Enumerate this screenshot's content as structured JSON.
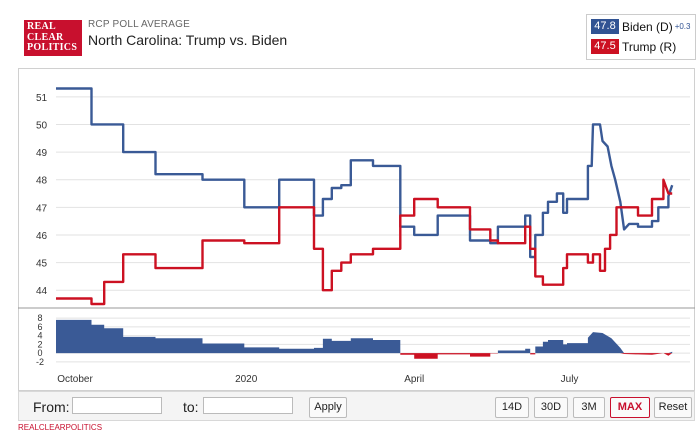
{
  "header": {
    "logo_lines": [
      "REAL",
      "CLEAR",
      "POLITICS"
    ],
    "kicker": "RCP POLL AVERAGE",
    "title": "North Carolina: Trump vs. Biden"
  },
  "legend": {
    "biden": {
      "value": "47.8",
      "name": "Biden (D)",
      "spread": "+0.3",
      "color": "#315393"
    },
    "trump": {
      "value": "47.5",
      "name": "Trump (R)",
      "color": "#cc1122"
    }
  },
  "colors": {
    "biden": "#3a5a96",
    "trump": "#cc1122",
    "grid": "#e2e2e2",
    "axis_text": "#333333"
  },
  "chart_data": {
    "type": "line",
    "title": "North Carolina: Trump vs. Biden",
    "x_ticks": [
      {
        "label": "October",
        "t": 0.03
      },
      {
        "label": "2020",
        "t": 0.3
      },
      {
        "label": "April",
        "t": 0.565
      },
      {
        "label": "July",
        "t": 0.81
      }
    ],
    "ylim": [
      43.5,
      51.5
    ],
    "y_ticks": [
      44,
      45,
      46,
      47,
      48,
      49,
      50,
      51
    ],
    "series": [
      {
        "name": "Biden (D)",
        "color": "#3a5a96",
        "points": [
          [
            0.0,
            51.3
          ],
          [
            0.056,
            51.3
          ],
          [
            0.056,
            50.0
          ],
          [
            0.106,
            50.0
          ],
          [
            0.106,
            49.0
          ],
          [
            0.157,
            49.0
          ],
          [
            0.157,
            48.2
          ],
          [
            0.231,
            48.2
          ],
          [
            0.231,
            48.0
          ],
          [
            0.297,
            48.0
          ],
          [
            0.297,
            47.0
          ],
          [
            0.352,
            47.0
          ],
          [
            0.352,
            48.0
          ],
          [
            0.407,
            48.0
          ],
          [
            0.407,
            46.7
          ],
          [
            0.421,
            46.7
          ],
          [
            0.421,
            47.3
          ],
          [
            0.435,
            47.3
          ],
          [
            0.435,
            47.7
          ],
          [
            0.45,
            47.7
          ],
          [
            0.45,
            47.8
          ],
          [
            0.465,
            47.8
          ],
          [
            0.465,
            48.7
          ],
          [
            0.5,
            48.7
          ],
          [
            0.5,
            48.5
          ],
          [
            0.543,
            48.5
          ],
          [
            0.543,
            46.3
          ],
          [
            0.565,
            46.3
          ],
          [
            0.565,
            46.0
          ],
          [
            0.602,
            46.0
          ],
          [
            0.602,
            46.7
          ],
          [
            0.653,
            46.7
          ],
          [
            0.653,
            45.8
          ],
          [
            0.685,
            45.8
          ],
          [
            0.685,
            45.7
          ],
          [
            0.697,
            45.7
          ],
          [
            0.697,
            46.3
          ],
          [
            0.74,
            46.3
          ],
          [
            0.74,
            46.7
          ],
          [
            0.748,
            46.7
          ],
          [
            0.748,
            45.2
          ],
          [
            0.756,
            45.2
          ],
          [
            0.756,
            46.0
          ],
          [
            0.768,
            46.0
          ],
          [
            0.768,
            46.8
          ],
          [
            0.776,
            46.8
          ],
          [
            0.776,
            47.2
          ],
          [
            0.79,
            47.2
          ],
          [
            0.79,
            47.5
          ],
          [
            0.8,
            47.5
          ],
          [
            0.8,
            46.8
          ],
          [
            0.806,
            46.8
          ],
          [
            0.806,
            47.3
          ],
          [
            0.839,
            47.3
          ],
          [
            0.839,
            48.5
          ],
          [
            0.845,
            48.5
          ],
          [
            0.847,
            50.0
          ],
          [
            0.858,
            50.0
          ],
          [
            0.862,
            49.4
          ],
          [
            0.87,
            49.2
          ],
          [
            0.876,
            48.5
          ],
          [
            0.882,
            48.0
          ],
          [
            0.89,
            47.2
          ],
          [
            0.896,
            46.2
          ],
          [
            0.904,
            46.4
          ],
          [
            0.918,
            46.4
          ],
          [
            0.918,
            46.3
          ],
          [
            0.94,
            46.3
          ],
          [
            0.94,
            46.5
          ],
          [
            0.95,
            46.5
          ],
          [
            0.95,
            47.0
          ],
          [
            0.966,
            47.0
          ],
          [
            0.966,
            47.4
          ],
          [
            0.972,
            47.8
          ]
        ]
      },
      {
        "name": "Trump (R)",
        "color": "#cc1122",
        "points": [
          [
            0.0,
            43.7
          ],
          [
            0.056,
            43.7
          ],
          [
            0.056,
            43.5
          ],
          [
            0.076,
            43.5
          ],
          [
            0.076,
            44.3
          ],
          [
            0.106,
            44.3
          ],
          [
            0.106,
            45.3
          ],
          [
            0.157,
            45.3
          ],
          [
            0.157,
            44.8
          ],
          [
            0.231,
            44.8
          ],
          [
            0.231,
            45.8
          ],
          [
            0.297,
            45.8
          ],
          [
            0.297,
            45.7
          ],
          [
            0.352,
            45.7
          ],
          [
            0.352,
            47.0
          ],
          [
            0.407,
            47.0
          ],
          [
            0.407,
            45.5
          ],
          [
            0.421,
            45.5
          ],
          [
            0.421,
            44.0
          ],
          [
            0.435,
            44.0
          ],
          [
            0.435,
            44.7
          ],
          [
            0.45,
            44.7
          ],
          [
            0.45,
            45.0
          ],
          [
            0.465,
            45.0
          ],
          [
            0.465,
            45.3
          ],
          [
            0.5,
            45.3
          ],
          [
            0.5,
            45.5
          ],
          [
            0.543,
            45.5
          ],
          [
            0.543,
            46.7
          ],
          [
            0.565,
            46.7
          ],
          [
            0.565,
            47.3
          ],
          [
            0.602,
            47.3
          ],
          [
            0.602,
            47.0
          ],
          [
            0.653,
            47.0
          ],
          [
            0.653,
            46.2
          ],
          [
            0.685,
            46.2
          ],
          [
            0.685,
            45.8
          ],
          [
            0.697,
            45.8
          ],
          [
            0.697,
            45.7
          ],
          [
            0.74,
            45.7
          ],
          [
            0.74,
            46.3
          ],
          [
            0.748,
            46.3
          ],
          [
            0.748,
            45.5
          ],
          [
            0.756,
            45.5
          ],
          [
            0.756,
            44.5
          ],
          [
            0.768,
            44.5
          ],
          [
            0.768,
            44.2
          ],
          [
            0.8,
            44.2
          ],
          [
            0.8,
            44.8
          ],
          [
            0.806,
            44.8
          ],
          [
            0.806,
            45.3
          ],
          [
            0.839,
            45.3
          ],
          [
            0.839,
            45.0
          ],
          [
            0.847,
            45.0
          ],
          [
            0.847,
            45.3
          ],
          [
            0.858,
            45.3
          ],
          [
            0.858,
            44.7
          ],
          [
            0.866,
            44.7
          ],
          [
            0.866,
            45.5
          ],
          [
            0.874,
            45.5
          ],
          [
            0.874,
            46.0
          ],
          [
            0.884,
            46.0
          ],
          [
            0.884,
            47.0
          ],
          [
            0.918,
            47.0
          ],
          [
            0.918,
            46.7
          ],
          [
            0.94,
            46.7
          ],
          [
            0.94,
            47.3
          ],
          [
            0.958,
            47.3
          ],
          [
            0.958,
            48.0
          ],
          [
            0.966,
            47.5
          ],
          [
            0.972,
            47.5
          ]
        ]
      }
    ],
    "spread_panel": {
      "ylim": [
        -2.5,
        8.5
      ],
      "y_ticks": [
        8,
        6,
        4,
        2,
        0,
        -2
      ],
      "points": [
        [
          0.0,
          7.6
        ],
        [
          0.056,
          7.6
        ],
        [
          0.056,
          6.5
        ],
        [
          0.076,
          6.5
        ],
        [
          0.076,
          5.7
        ],
        [
          0.106,
          5.7
        ],
        [
          0.106,
          3.7
        ],
        [
          0.157,
          3.7
        ],
        [
          0.157,
          3.4
        ],
        [
          0.231,
          3.4
        ],
        [
          0.231,
          2.2
        ],
        [
          0.297,
          2.2
        ],
        [
          0.297,
          1.3
        ],
        [
          0.352,
          1.3
        ],
        [
          0.352,
          1.0
        ],
        [
          0.407,
          1.0
        ],
        [
          0.407,
          1.2
        ],
        [
          0.421,
          1.2
        ],
        [
          0.421,
          3.3
        ],
        [
          0.435,
          3.3
        ],
        [
          0.435,
          2.8
        ],
        [
          0.465,
          2.8
        ],
        [
          0.465,
          3.4
        ],
        [
          0.5,
          3.4
        ],
        [
          0.5,
          3.0
        ],
        [
          0.543,
          3.0
        ],
        [
          0.543,
          -0.4
        ],
        [
          0.565,
          -0.4
        ],
        [
          0.565,
          -1.3
        ],
        [
          0.602,
          -1.3
        ],
        [
          0.602,
          -0.3
        ],
        [
          0.653,
          -0.3
        ],
        [
          0.653,
          -0.8
        ],
        [
          0.685,
          -0.8
        ],
        [
          0.685,
          -0.1
        ],
        [
          0.697,
          -0.1
        ],
        [
          0.697,
          0.6
        ],
        [
          0.74,
          0.6
        ],
        [
          0.74,
          1.0
        ],
        [
          0.748,
          1.0
        ],
        [
          0.748,
          -0.3
        ],
        [
          0.756,
          -0.3
        ],
        [
          0.756,
          1.5
        ],
        [
          0.768,
          1.5
        ],
        [
          0.768,
          2.6
        ],
        [
          0.776,
          2.6
        ],
        [
          0.776,
          3.0
        ],
        [
          0.8,
          3.0
        ],
        [
          0.8,
          2.0
        ],
        [
          0.806,
          2.0
        ],
        [
          0.806,
          2.3
        ],
        [
          0.839,
          2.3
        ],
        [
          0.839,
          3.5
        ],
        [
          0.847,
          4.8
        ],
        [
          0.862,
          4.6
        ],
        [
          0.876,
          3.4
        ],
        [
          0.89,
          1.2
        ],
        [
          0.896,
          -0.2
        ],
        [
          0.918,
          -0.3
        ],
        [
          0.94,
          -0.4
        ],
        [
          0.958,
          0.0
        ],
        [
          0.966,
          -0.6
        ],
        [
          0.972,
          0.3
        ]
      ]
    }
  },
  "controls": {
    "from_label": "From:",
    "to_label": "to:",
    "from_value": "",
    "to_value": "",
    "apply_label": "Apply",
    "range_buttons": [
      "14D",
      "30D",
      "3M",
      "MAX"
    ],
    "active_range": "MAX",
    "reset_label": "Reset"
  },
  "footer": {
    "text": "REALCLEARPOLITICS"
  }
}
